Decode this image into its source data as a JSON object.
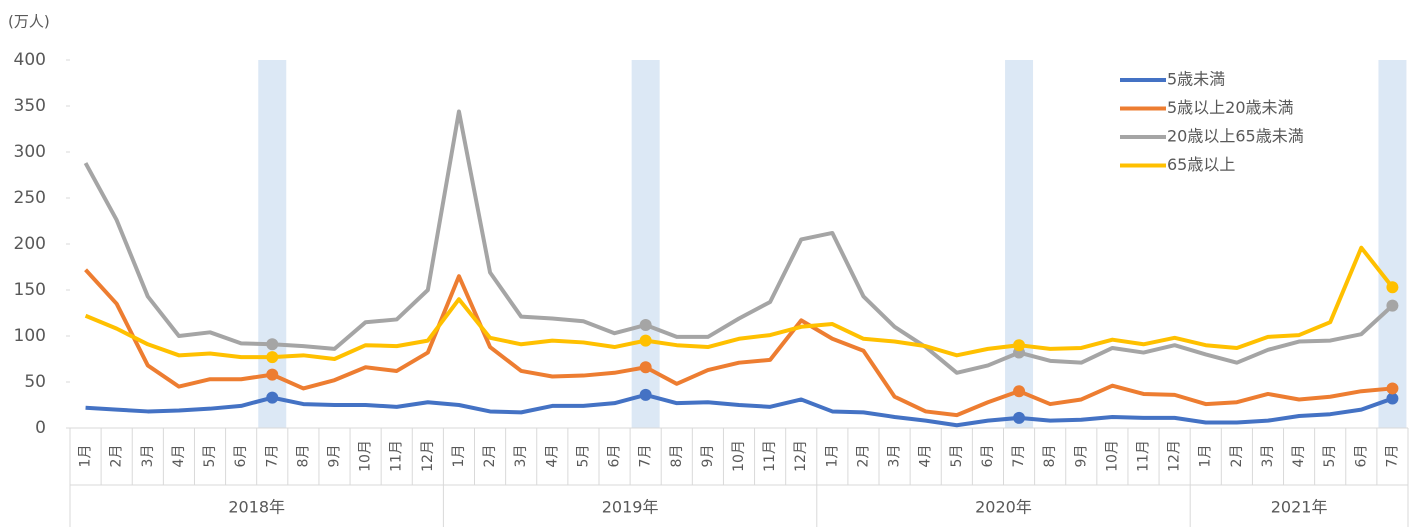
{
  "chart_data": {
    "type": "line",
    "unit_label": "(万人)",
    "categories": [
      "1月",
      "2月",
      "3月",
      "4月",
      "5月",
      "6月",
      "7月",
      "8月",
      "9月",
      "10月",
      "11月",
      "12月",
      "1月",
      "2月",
      "3月",
      "4月",
      "5月",
      "6月",
      "7月",
      "8月",
      "9月",
      "10月",
      "11月",
      "12月",
      "1月",
      "2月",
      "3月",
      "4月",
      "5月",
      "6月",
      "7月",
      "8月",
      "9月",
      "10月",
      "11月",
      "12月",
      "1月",
      "2月",
      "3月",
      "4月",
      "5月",
      "6月",
      "7月"
    ],
    "years": [
      "2018年",
      "2019年",
      "2020年",
      "2021年"
    ],
    "highlight": [
      6,
      18,
      30,
      42
    ],
    "ylim": [
      0,
      400
    ],
    "yticks": [
      0,
      50,
      100,
      150,
      200,
      250,
      300,
      350,
      400
    ],
    "legend": "top-right",
    "series": [
      {
        "name": "5歳未満",
        "color": "#4472c4",
        "values": [
          22,
          20,
          18,
          19,
          21,
          24,
          33,
          26,
          25,
          25,
          23,
          28,
          25,
          18,
          17,
          24,
          24,
          27,
          36,
          27,
          28,
          25,
          23,
          31,
          18,
          17,
          12,
          8,
          3,
          8,
          11,
          8,
          9,
          12,
          11,
          11,
          6,
          6,
          8,
          13,
          15,
          20,
          32
        ]
      },
      {
        "name": "5歳以上20歳未満",
        "color": "#ed7d31",
        "values": [
          172,
          135,
          68,
          45,
          53,
          53,
          58,
          43,
          52,
          66,
          62,
          82,
          165,
          88,
          62,
          56,
          57,
          60,
          66,
          48,
          63,
          71,
          74,
          117,
          97,
          84,
          34,
          18,
          14,
          28,
          40,
          26,
          31,
          46,
          37,
          36,
          26,
          28,
          37,
          31,
          34,
          40,
          43
        ]
      },
      {
        "name": "20歳以上65歳未満",
        "color": "#a5a5a5",
        "values": [
          288,
          226,
          143,
          100,
          104,
          92,
          91,
          89,
          86,
          115,
          118,
          150,
          344,
          169,
          121,
          119,
          116,
          103,
          112,
          99,
          99,
          119,
          137,
          205,
          212,
          143,
          110,
          88,
          60,
          68,
          82,
          73,
          71,
          87,
          82,
          90,
          80,
          71,
          85,
          94,
          95,
          102,
          133
        ]
      },
      {
        "name": "65歳以上",
        "color": "#ffc000",
        "values": [
          122,
          108,
          91,
          79,
          81,
          77,
          77,
          79,
          75,
          90,
          89,
          95,
          140,
          98,
          91,
          95,
          93,
          88,
          95,
          90,
          88,
          97,
          101,
          110,
          113,
          97,
          94,
          89,
          79,
          86,
          90,
          86,
          87,
          96,
          91,
          98,
          90,
          87,
          99,
          101,
          115,
          196,
          153
        ]
      }
    ]
  }
}
